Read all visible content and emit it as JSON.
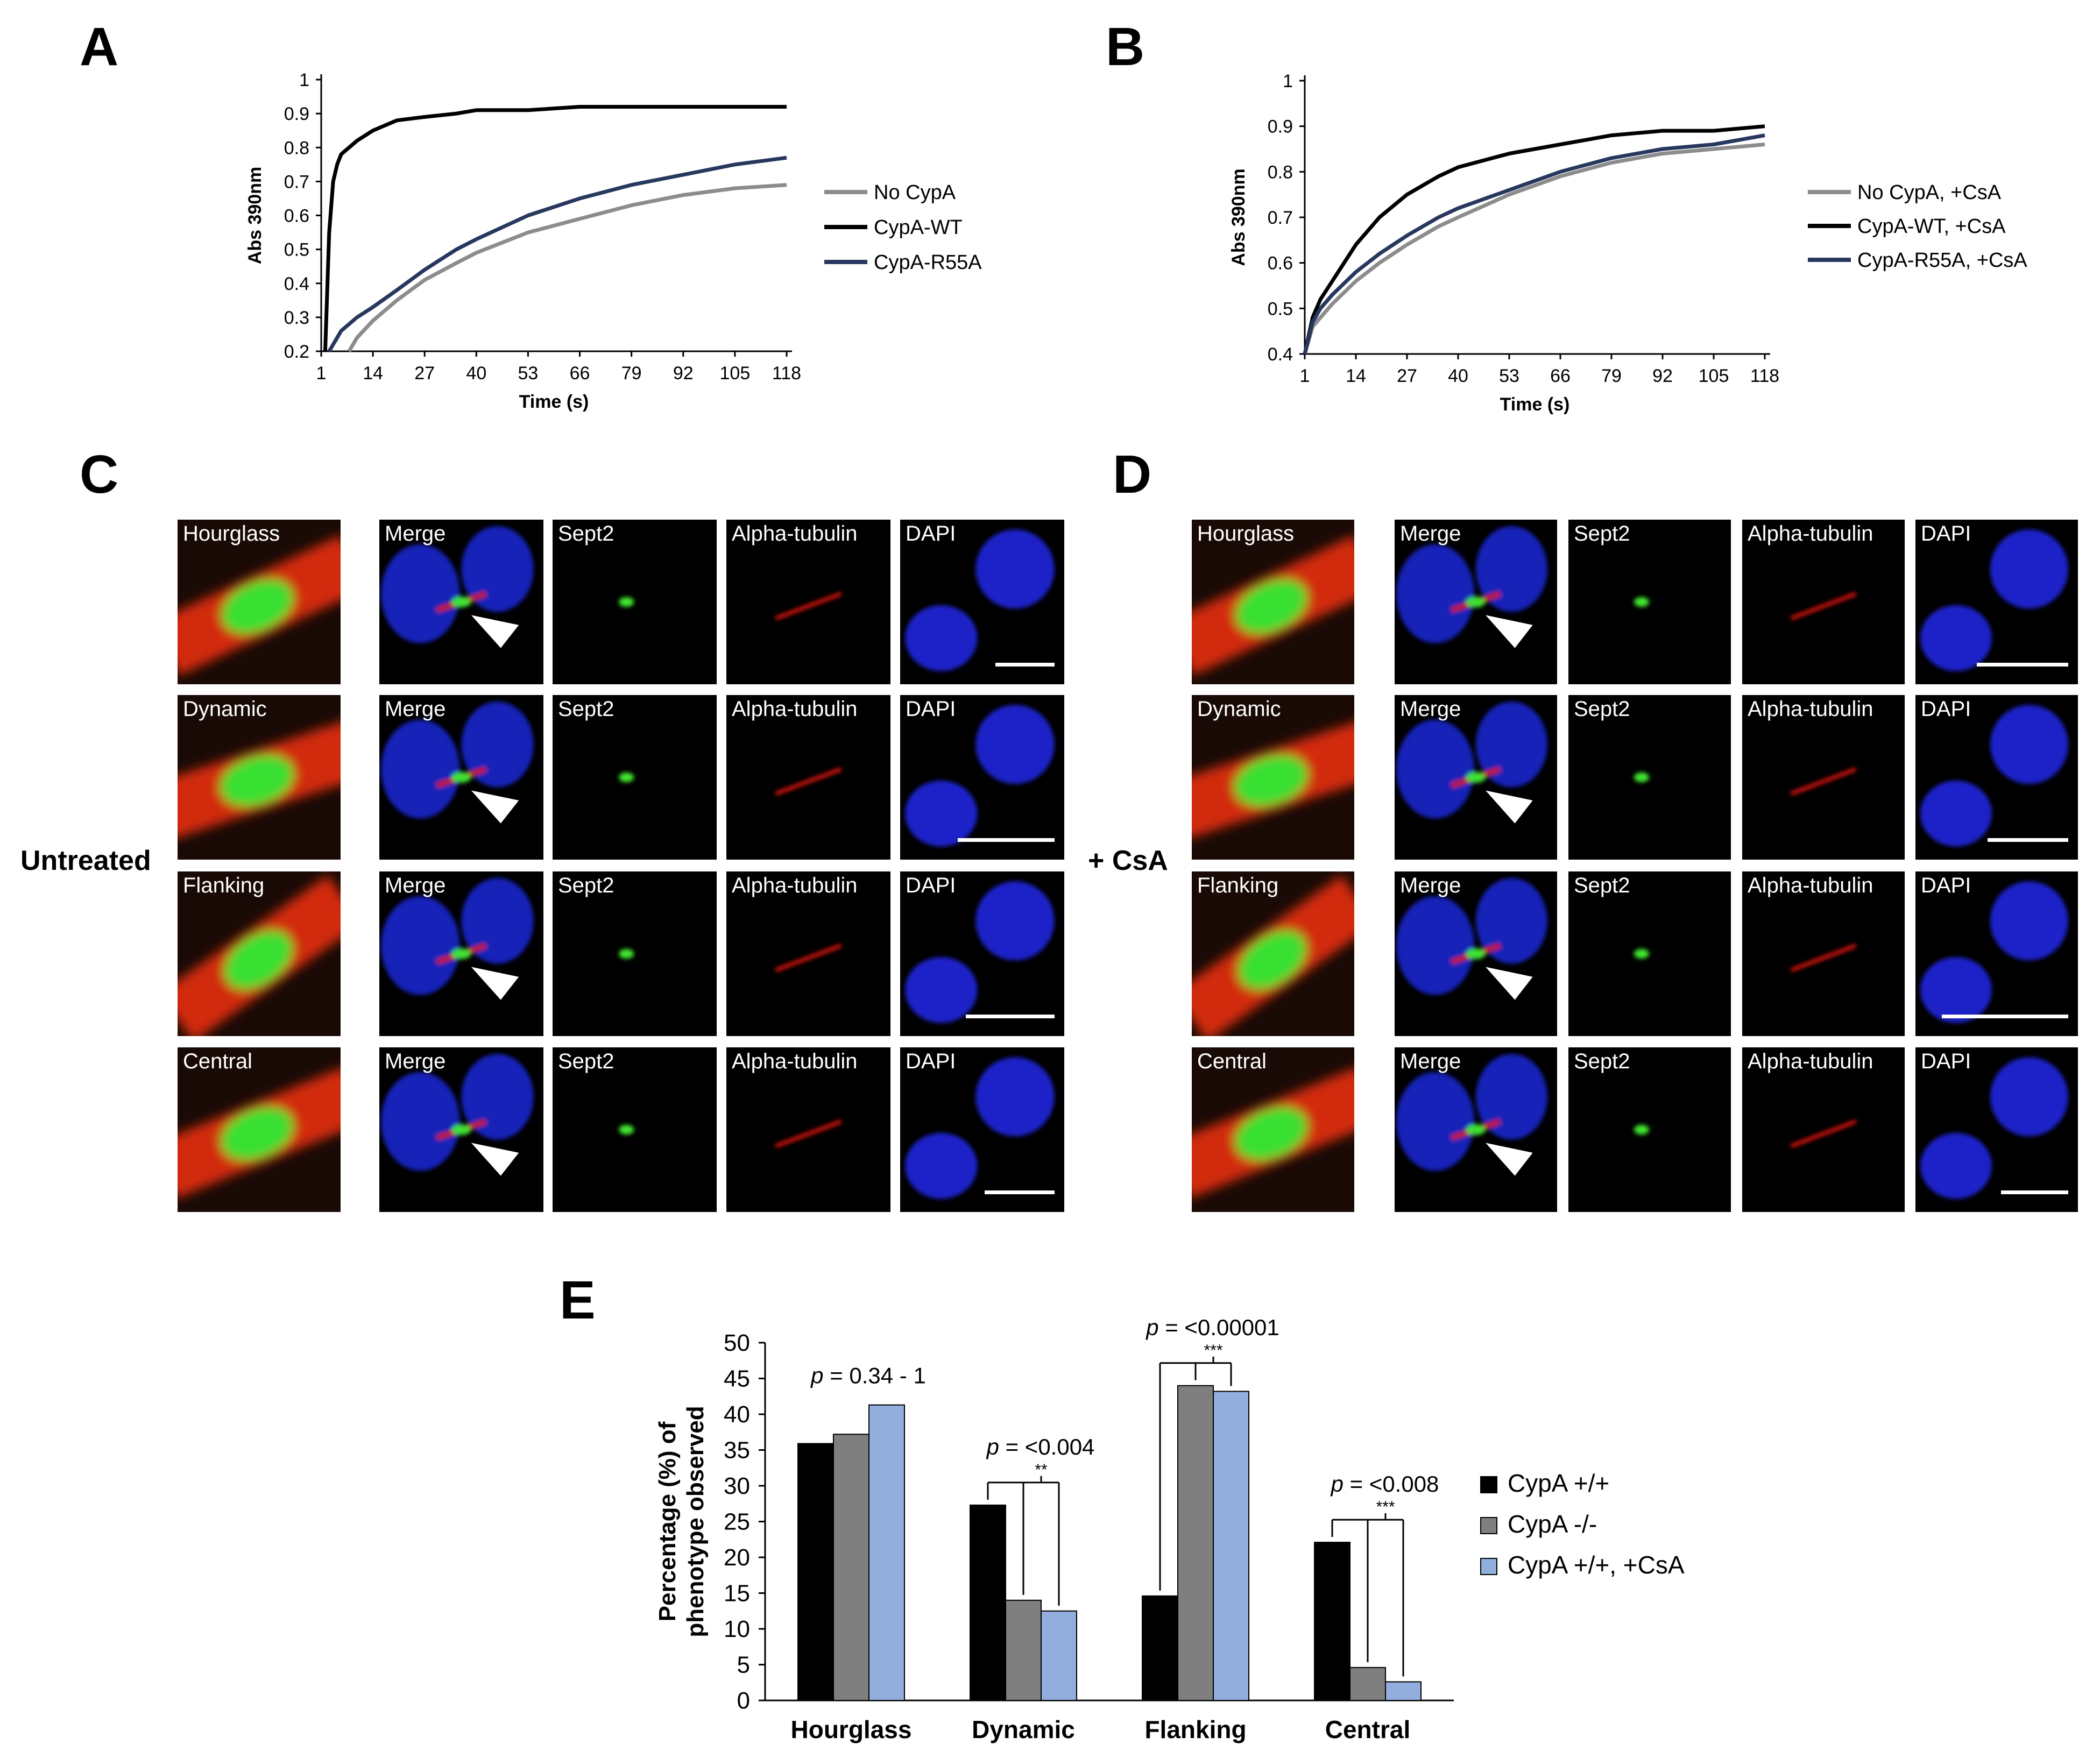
{
  "panels": {
    "A": "A",
    "B": "B",
    "C": "C",
    "D": "D",
    "E": "E"
  },
  "side_labels": {
    "untreated": "Untreated",
    "csa": "+ CsA"
  },
  "micro_labels": {
    "phenotypes": [
      "Hourglass",
      "Dynamic",
      "Flanking",
      "Central"
    ],
    "channels": [
      "Merge",
      "Sept2",
      "Alpha-tubulin",
      "DAPI"
    ]
  },
  "colors": {
    "black": "#000000",
    "gray": "#8c8c8c",
    "navy": "#27375e",
    "grey_bar": "#7f7f7f",
    "blue_bar": "#92aedd"
  },
  "chart_data": [
    {
      "type": "line",
      "panel": "A",
      "xlabel": "Time (s)",
      "ylabel": "Abs 390nm",
      "x_ticks": [
        "1",
        "14",
        "27",
        "40",
        "53",
        "66",
        "79",
        "92",
        "105",
        "118"
      ],
      "y_ticks": [
        "0.2",
        "0.3",
        "0.4",
        "0.5",
        "0.6",
        "0.7",
        "0.8",
        "0.9",
        "1"
      ],
      "xlim": [
        1,
        118
      ],
      "ylim": [
        0.2,
        1
      ],
      "legend_position": "right",
      "x": [
        1,
        2,
        3,
        4,
        5,
        6,
        8,
        10,
        14,
        20,
        27,
        35,
        40,
        53,
        66,
        79,
        92,
        105,
        118
      ],
      "series": [
        {
          "name": "No CypA",
          "color": "#8c8c8c",
          "values": [
            null,
            null,
            null,
            null,
            null,
            null,
            0.2,
            0.24,
            0.29,
            0.35,
            0.41,
            0.46,
            0.49,
            0.55,
            0.59,
            0.63,
            0.66,
            0.68,
            0.69
          ]
        },
        {
          "name": "CypA-WT",
          "color": "#000000",
          "values": [
            null,
            0.2,
            0.55,
            0.7,
            0.75,
            0.78,
            0.8,
            0.82,
            0.85,
            0.88,
            0.89,
            0.9,
            0.91,
            0.91,
            0.92,
            0.92,
            0.92,
            0.92,
            0.92
          ]
        },
        {
          "name": "CypA-R55A",
          "color": "#27375e",
          "values": [
            null,
            null,
            0.2,
            0.22,
            0.24,
            0.26,
            0.28,
            0.3,
            0.33,
            0.38,
            0.44,
            0.5,
            0.53,
            0.6,
            0.65,
            0.69,
            0.72,
            0.75,
            0.77
          ]
        }
      ]
    },
    {
      "type": "line",
      "panel": "B",
      "xlabel": "Time (s)",
      "ylabel": "Abs 390nm",
      "x_ticks": [
        "1",
        "14",
        "27",
        "40",
        "53",
        "66",
        "79",
        "92",
        "105",
        "118"
      ],
      "y_ticks": [
        "0.4",
        "0.5",
        "0.6",
        "0.7",
        "0.8",
        "0.9",
        "1"
      ],
      "xlim": [
        1,
        118
      ],
      "ylim": [
        0.4,
        1
      ],
      "legend_position": "right",
      "x": [
        1,
        3,
        5,
        8,
        14,
        20,
        27,
        35,
        40,
        53,
        66,
        79,
        92,
        105,
        118
      ],
      "series": [
        {
          "name": "No CypA, +CsA",
          "color": "#8c8c8c",
          "values": [
            0.4,
            0.46,
            0.48,
            0.51,
            0.56,
            0.6,
            0.64,
            0.68,
            0.7,
            0.75,
            0.79,
            0.82,
            0.84,
            0.85,
            0.86
          ]
        },
        {
          "name": "CypA-WT, +CsA",
          "color": "#000000",
          "values": [
            0.4,
            0.48,
            0.52,
            0.56,
            0.64,
            0.7,
            0.75,
            0.79,
            0.81,
            0.84,
            0.86,
            0.88,
            0.89,
            0.89,
            0.9
          ]
        },
        {
          "name": "CypA-R55A, +CsA",
          "color": "#27375e",
          "values": [
            0.4,
            0.47,
            0.5,
            0.53,
            0.58,
            0.62,
            0.66,
            0.7,
            0.72,
            0.76,
            0.8,
            0.83,
            0.85,
            0.86,
            0.88
          ]
        }
      ]
    },
    {
      "type": "bar",
      "panel": "E",
      "ylabel_lines": [
        "Percentage (%) of",
        "phenotype observed"
      ],
      "y_ticks": [
        "0",
        "5",
        "10",
        "15",
        "20",
        "25",
        "30",
        "35",
        "40",
        "45",
        "50"
      ],
      "ylim": [
        0,
        50
      ],
      "categories": [
        "Hourglass",
        "Dynamic",
        "Flanking",
        "Central"
      ],
      "legend_position": "right",
      "series": [
        {
          "name": "CypA +/+",
          "color": "#000000",
          "values": [
            35.9,
            27.3,
            14.6,
            22.1
          ]
        },
        {
          "name": "CypA -/-",
          "color": "#7f7f7f",
          "values": [
            37.2,
            14.0,
            44.0,
            4.6
          ]
        },
        {
          "name": "CypA +/+, +CsA",
          "color": "#92aedd",
          "values": [
            41.3,
            12.5,
            43.2,
            2.6
          ]
        }
      ],
      "annotations": [
        {
          "p_italic": "p",
          "p_text": " = 0.34 - 1",
          "stars": ""
        },
        {
          "p_italic": "p",
          "p_text": " = <0.004",
          "stars": "**"
        },
        {
          "p_italic": "p",
          "p_text": " = <0.00001",
          "stars": "***"
        },
        {
          "p_italic": "p",
          "p_text": " = <0.008",
          "stars": "***"
        }
      ]
    }
  ]
}
